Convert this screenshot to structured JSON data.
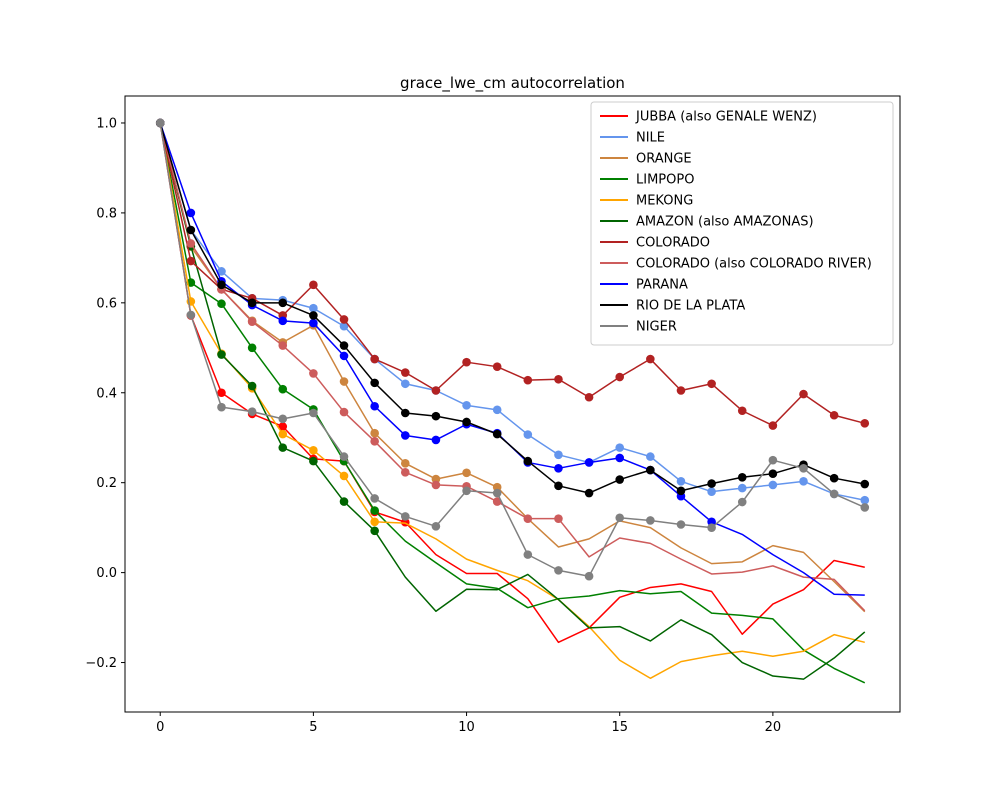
{
  "chart_data": {
    "type": "line",
    "title": "grace_lwe_cm autocorrelation",
    "xlabel": "",
    "ylabel": "",
    "xlim": [
      -1.15,
      24.15
    ],
    "ylim": [
      -0.31,
      1.06
    ],
    "xticks": [
      0,
      5,
      10,
      15,
      20
    ],
    "yticks": [
      -0.2,
      0.0,
      0.2,
      0.4,
      0.6,
      0.8,
      1.0
    ],
    "ytick_labels": [
      "−0.2",
      "0.0",
      "0.2",
      "0.4",
      "0.6",
      "0.8",
      "1.0"
    ],
    "grid": false,
    "legend_position": "top-right",
    "x": [
      0,
      1,
      2,
      3,
      4,
      5,
      6,
      7,
      8,
      9,
      10,
      11,
      12,
      13,
      14,
      15,
      16,
      17,
      18,
      19,
      20,
      21,
      22,
      23
    ],
    "series": [
      {
        "name": "JUBBA (also GENALE WENZ)",
        "color": "#ff0000",
        "marker_count": 9,
        "values": [
          1.0,
          0.572,
          0.4,
          0.353,
          0.325,
          0.253,
          0.248,
          0.135,
          0.112,
          0.04,
          -0.002,
          -0.002,
          -0.058,
          -0.155,
          -0.123,
          -0.055,
          -0.033,
          -0.025,
          -0.042,
          -0.137,
          -0.07,
          -0.038,
          0.027,
          0.012
        ]
      },
      {
        "name": "NILE",
        "color": "#6495ed",
        "marker_count": 24,
        "values": [
          1.0,
          0.762,
          0.67,
          0.61,
          0.606,
          0.588,
          0.548,
          0.475,
          0.42,
          0.405,
          0.372,
          0.362,
          0.307,
          0.262,
          0.245,
          0.278,
          0.258,
          0.203,
          0.18,
          0.188,
          0.195,
          0.203,
          0.175,
          0.161
        ]
      },
      {
        "name": "ORANGE",
        "color": "#cd853f",
        "marker_count": 12,
        "values": [
          1.0,
          0.725,
          0.63,
          0.56,
          0.512,
          0.55,
          0.425,
          0.31,
          0.243,
          0.208,
          0.222,
          0.19,
          0.12,
          0.057,
          0.075,
          0.115,
          0.1,
          0.055,
          0.02,
          0.024,
          0.06,
          0.045,
          -0.02,
          -0.087
        ]
      },
      {
        "name": "LIMPOPO",
        "color": "#008000",
        "marker_count": 8,
        "values": [
          1.0,
          0.645,
          0.598,
          0.5,
          0.408,
          0.363,
          0.248,
          0.138,
          0.07,
          0.022,
          -0.025,
          -0.035,
          -0.078,
          -0.058,
          -0.052,
          -0.04,
          -0.047,
          -0.042,
          -0.09,
          -0.095,
          -0.103,
          -0.172,
          -0.213,
          -0.245
        ]
      },
      {
        "name": "MEKONG",
        "color": "#ffa500",
        "marker_count": 8,
        "values": [
          1.0,
          0.603,
          0.487,
          0.41,
          0.308,
          0.272,
          0.215,
          0.113,
          0.11,
          0.075,
          0.03,
          0.005,
          -0.018,
          -0.06,
          -0.12,
          -0.195,
          -0.235,
          -0.198,
          -0.185,
          -0.175,
          -0.186,
          -0.175,
          -0.138,
          -0.155
        ]
      },
      {
        "name": "AMAZON (also AMAZONAS)",
        "color": "#006400",
        "marker_count": 8,
        "values": [
          1.0,
          0.726,
          0.485,
          0.415,
          0.278,
          0.248,
          0.158,
          0.093,
          -0.01,
          -0.086,
          -0.037,
          -0.038,
          -0.004,
          -0.06,
          -0.123,
          -0.12,
          -0.152,
          -0.105,
          -0.138,
          -0.2,
          -0.23,
          -0.237,
          -0.19,
          -0.132
        ]
      },
      {
        "name": "COLORADO",
        "color": "#b22222",
        "marker_count": 24,
        "values": [
          1.0,
          0.693,
          0.63,
          0.61,
          0.572,
          0.64,
          0.563,
          0.475,
          0.445,
          0.405,
          0.468,
          0.458,
          0.428,
          0.43,
          0.39,
          0.435,
          0.475,
          0.405,
          0.42,
          0.36,
          0.327,
          0.397,
          0.35,
          0.332
        ]
      },
      {
        "name": "COLORADO (also COLORADO RIVER)",
        "color": "#cd5c5c",
        "marker_count": 14,
        "values": [
          1.0,
          0.732,
          0.63,
          0.558,
          0.505,
          0.443,
          0.357,
          0.292,
          0.223,
          0.195,
          0.192,
          0.158,
          0.12,
          0.12,
          0.035,
          0.077,
          0.065,
          0.03,
          -0.003,
          0.001,
          0.015,
          -0.01,
          -0.015,
          -0.085
        ]
      },
      {
        "name": "PARANA",
        "color": "#0000ff",
        "marker_count": 19,
        "values": [
          1.0,
          0.8,
          0.648,
          0.595,
          0.56,
          0.555,
          0.482,
          0.37,
          0.305,
          0.295,
          0.33,
          0.31,
          0.245,
          0.232,
          0.245,
          0.255,
          0.228,
          0.17,
          0.113,
          0.085,
          0.04,
          0.0,
          -0.048,
          -0.05
        ]
      },
      {
        "name": "RIO DE LA PLATA",
        "color": "#000000",
        "marker_count": 24,
        "values": [
          1.0,
          0.762,
          0.64,
          0.6,
          0.6,
          0.572,
          0.505,
          0.422,
          0.355,
          0.348,
          0.335,
          0.308,
          0.248,
          0.193,
          0.177,
          0.207,
          0.228,
          0.182,
          0.198,
          0.212,
          0.22,
          0.24,
          0.21,
          0.197
        ]
      },
      {
        "name": "NIGER",
        "color": "#808080",
        "marker_count": 24,
        "values": [
          1.0,
          0.573,
          0.368,
          0.358,
          0.342,
          0.355,
          0.258,
          0.165,
          0.125,
          0.103,
          0.182,
          0.177,
          0.04,
          0.005,
          -0.008,
          0.122,
          0.116,
          0.107,
          0.1,
          0.157,
          0.25,
          0.232,
          0.175,
          0.145
        ]
      }
    ]
  }
}
